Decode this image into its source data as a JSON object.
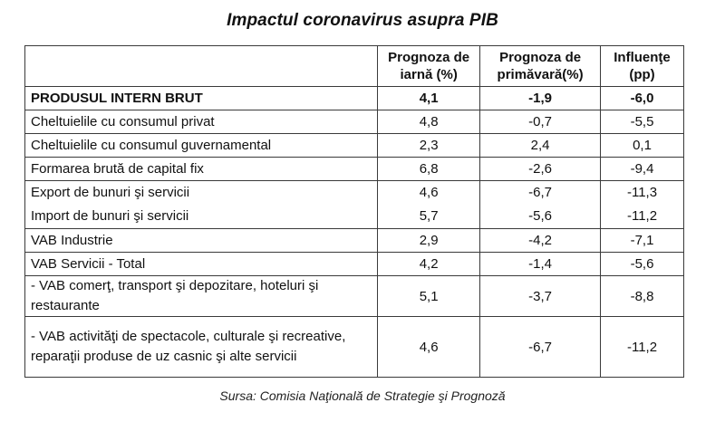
{
  "title": "Impactul coronavirus asupra PIB",
  "table": {
    "headers": [
      "",
      "Prognoza de iarnă (%)",
      "Prognoza de primăvară(%)",
      "Influenţe (pp)"
    ],
    "header_lines": [
      [
        ""
      ],
      [
        "Prognoza de",
        "iarnă (%)"
      ],
      [
        "Prognoza de",
        "primăvară(%)"
      ],
      [
        "Influenţe",
        "(pp)"
      ]
    ],
    "rows": [
      {
        "label": "PRODUSUL INTERN BRUT",
        "winter": "4,1",
        "spring": "-1,9",
        "influence": "-6,0",
        "bold": true
      },
      {
        "label": "Cheltuielile cu consumul privat",
        "winter": "4,8",
        "spring": "-0,7",
        "influence": "-5,5"
      },
      {
        "label": "Cheltuielile cu consumul guvernamental",
        "winter": "2,3",
        "spring": "2,4",
        "influence": "0,1"
      },
      {
        "label": "Formarea brută de capital fix",
        "winter": "6,8",
        "spring": "-2,6",
        "influence": "-9,4"
      },
      {
        "label": "Export de bunuri şi servicii",
        "winter": "4,6",
        "spring": "-6,7",
        "influence": "-11,3"
      },
      {
        "label": "Import de bunuri şi servicii",
        "winter": "5,7",
        "spring": "-5,6",
        "influence": "-11,2"
      },
      {
        "label": "VAB Industrie",
        "winter": "2,9",
        "spring": "-4,2",
        "influence": "-7,1"
      },
      {
        "label": "VAB Servicii - Total",
        "winter": "4,2",
        "spring": "-1,4",
        "influence": "-5,6"
      },
      {
        "label": "- VAB comerţ, transport şi depozitare, hoteluri şi restaurante",
        "winter": "5,1",
        "spring": "-3,7",
        "influence": "-8,8"
      },
      {
        "label": "- VAB activităţi de spectacole, culturale şi recreative, reparaţii produse de uz casnic şi alte servicii",
        "winter": "4,6",
        "spring": "-6,7",
        "influence": "-11,2"
      }
    ]
  },
  "source": "Sursa: Comisia Naţională de Strategie şi Prognoză"
}
